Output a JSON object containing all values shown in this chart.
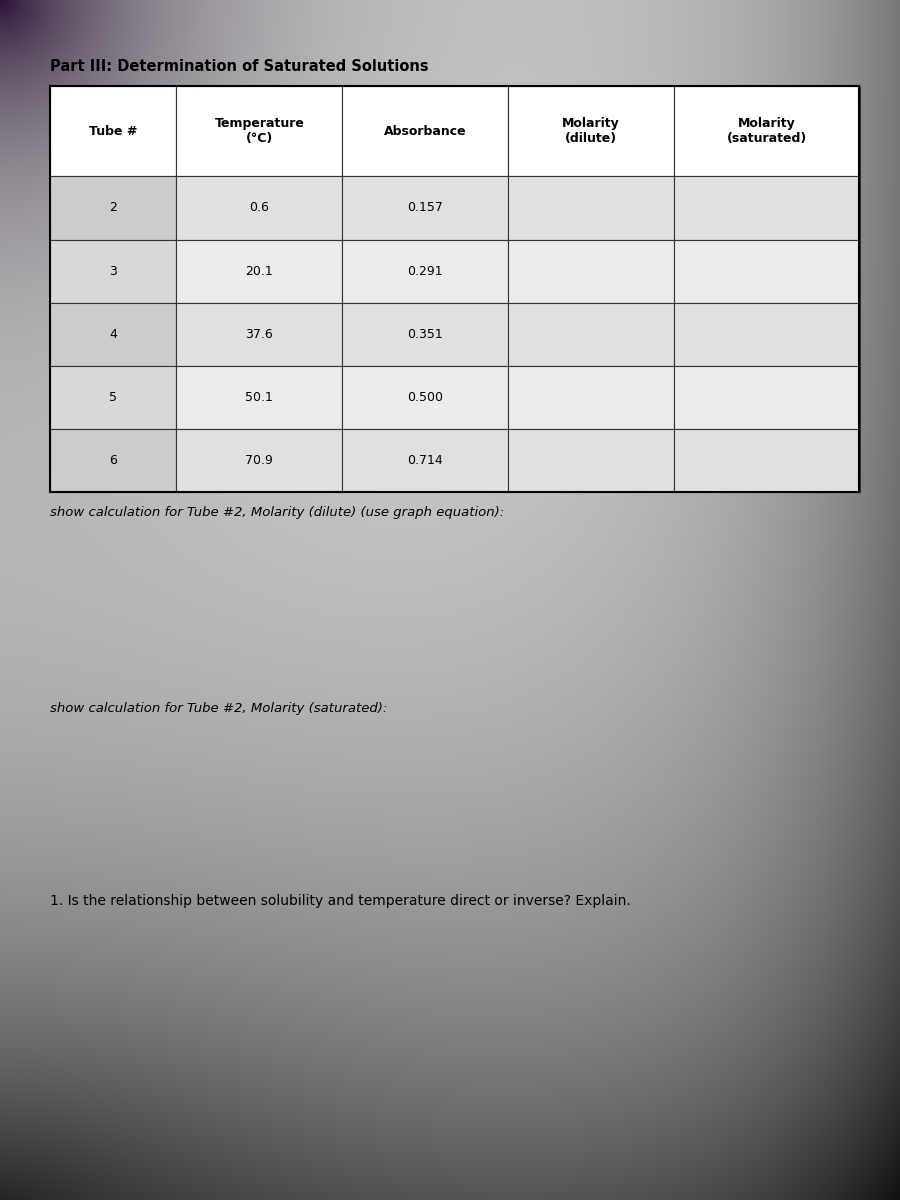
{
  "title": "Part III: Determination of Saturated Solutions",
  "headers": [
    "Tube #",
    "Temperature\n(°C)",
    "Absorbance",
    "Molarity\n(dilute)",
    "Molarity\n(saturated)"
  ],
  "rows": [
    [
      "2",
      "0.6",
      "0.157",
      "",
      ""
    ],
    [
      "3",
      "20.1",
      "0.291",
      "",
      ""
    ],
    [
      "4",
      "37.6",
      "0.351",
      "",
      ""
    ],
    [
      "5",
      "50.1",
      "0.500",
      "",
      ""
    ],
    [
      "6",
      "70.9",
      "0.714",
      "",
      ""
    ]
  ],
  "label1": "show calculation for Tube #2, Molarity (dilute) (use graph equation):",
  "label2": "show calculation for Tube #2, Molarity (saturated):",
  "label3": "1. Is the relationship between solubility and temperature direct or inverse? Explain.",
  "cell_bg_light": "#e8e8e8",
  "cell_bg_mid": "#d8d8d8",
  "header_bg": "#ffffff",
  "table_border": "#000000",
  "title_fontsize": 10.5,
  "header_fontsize": 9.0,
  "cell_fontsize": 9.0,
  "label_fontsize": 9.5
}
